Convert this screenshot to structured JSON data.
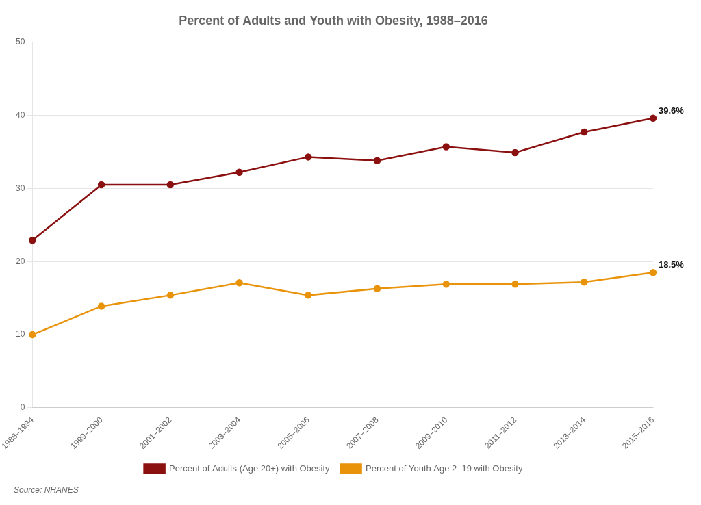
{
  "chart_data": {
    "type": "line",
    "title": "Percent of Adults and Youth with Obesity, 1988–2016",
    "annotations": [
      "Source: NHANES"
    ],
    "categories": [
      "1988–1994",
      "1999–2000",
      "2001–2002",
      "2003–2004",
      "2005–2006",
      "2007–2008",
      "2009–2010",
      "2011–2012",
      "2013–2014",
      "2015–2016"
    ],
    "series": [
      {
        "name": "Percent of Adults (Age 20+) with Obesity",
        "color": "#8B1010",
        "values": [
          22.9,
          30.5,
          30.5,
          32.2,
          34.3,
          33.8,
          35.7,
          34.9,
          37.7,
          39.6
        ],
        "value_labels": [
          null,
          null,
          null,
          null,
          null,
          null,
          null,
          null,
          null,
          "39.6%"
        ]
      },
      {
        "name": "Percent of Youth Age 2–19 with Obesity",
        "color": "#E8930A",
        "values": [
          10.0,
          13.9,
          15.4,
          17.1,
          15.4,
          16.3,
          16.9,
          16.9,
          17.2,
          18.5
        ],
        "value_labels": [
          null,
          null,
          null,
          null,
          null,
          null,
          null,
          null,
          null,
          "18.5%"
        ]
      }
    ],
    "ylim": [
      0,
      50
    ],
    "yticks": [
      0,
      10,
      20,
      30,
      40,
      50
    ],
    "grid": true,
    "legend": "bottom",
    "marker": "circle"
  }
}
